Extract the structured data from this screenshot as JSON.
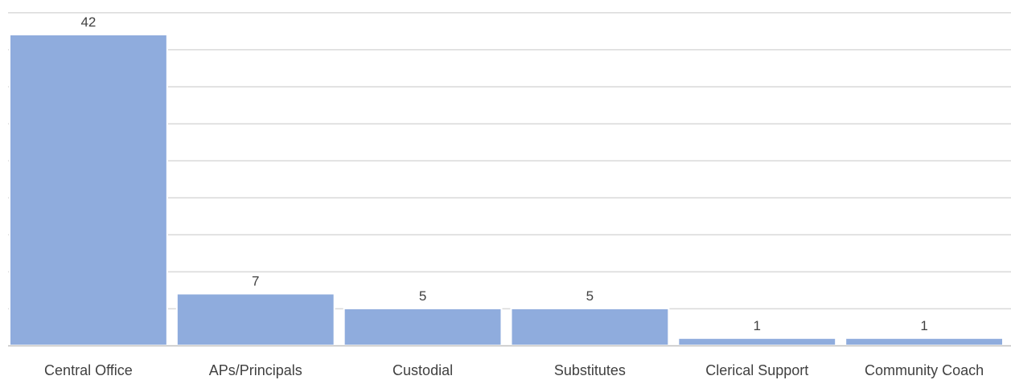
{
  "chart_data": {
    "type": "bar",
    "categories": [
      "Central Office",
      "APs/Principals",
      "Custodial",
      "Substitutes",
      "Clerical Support",
      "Community Coach"
    ],
    "values": [
      42,
      7,
      5,
      5,
      1,
      1
    ],
    "data_labels": [
      "42",
      "7",
      "5",
      "5",
      "1",
      "1"
    ],
    "title": "",
    "xlabel": "",
    "ylabel": "",
    "ylim": [
      0,
      45
    ],
    "grid": true,
    "legend": "none",
    "colors": {
      "bar": "#8FACDD",
      "bar_edge": "#ffffff",
      "grid": "#D9D9D9",
      "axis": "#BFBFBF",
      "label_text": "#404040"
    }
  }
}
